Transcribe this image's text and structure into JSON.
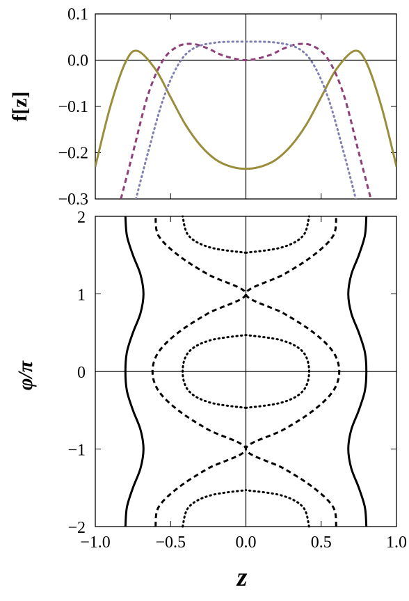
{
  "chart_data": [
    {
      "type": "line",
      "panel": "top",
      "ylabel": "f[z]",
      "xlim": [
        -1.0,
        1.0
      ],
      "ylim": [
        -0.3,
        0.1
      ],
      "xticks": [
        -1.0,
        -0.5,
        0.0,
        0.5,
        1.0
      ],
      "yticks": [
        0.1,
        0.0,
        -0.1,
        -0.2,
        -0.3
      ],
      "ytick_labels": [
        "0.1",
        "0.0",
        "−0.1",
        "−0.2",
        "−0.3"
      ],
      "grid": false,
      "series": [
        {
          "style": "solid",
          "color": "#9a8e3c",
          "x": [
            -1.0,
            -0.9,
            -0.8,
            -0.72,
            -0.6,
            -0.5,
            -0.4,
            -0.3,
            -0.2,
            -0.1,
            0.0,
            0.1,
            0.2,
            0.3,
            0.4,
            0.5,
            0.6,
            0.72,
            0.8,
            0.9,
            1.0
          ],
          "y": [
            -0.23,
            -0.1,
            -0.005,
            0.02,
            -0.02,
            -0.08,
            -0.14,
            -0.185,
            -0.215,
            -0.23,
            -0.235,
            -0.23,
            -0.215,
            -0.185,
            -0.14,
            -0.08,
            -0.02,
            0.02,
            -0.005,
            -0.1,
            -0.23
          ]
        },
        {
          "style": "dashed",
          "color": "#8e3f78",
          "x": [
            -0.83,
            -0.75,
            -0.65,
            -0.55,
            -0.45,
            -0.35,
            -0.25,
            -0.15,
            0.0,
            0.15,
            0.25,
            0.35,
            0.45,
            0.55,
            0.65,
            0.75,
            0.83
          ],
          "y": [
            -0.3,
            -0.2,
            -0.075,
            0.0,
            0.03,
            0.035,
            0.025,
            0.01,
            0.0,
            0.01,
            0.025,
            0.035,
            0.03,
            0.0,
            -0.075,
            -0.2,
            -0.3
          ]
        },
        {
          "style": "dotted",
          "color": "#7f7fb2",
          "x": [
            -0.73,
            -0.65,
            -0.55,
            -0.45,
            -0.35,
            -0.2,
            0.0,
            0.2,
            0.35,
            0.45,
            0.55,
            0.65,
            0.73
          ],
          "y": [
            -0.3,
            -0.2,
            -0.085,
            -0.01,
            0.025,
            0.038,
            0.04,
            0.038,
            0.025,
            -0.01,
            -0.085,
            -0.2,
            -0.3
          ]
        }
      ]
    },
    {
      "type": "line",
      "panel": "bottom",
      "xlabel": "z",
      "ylabel": "φ/π",
      "xlim": [
        -1.0,
        1.0
      ],
      "ylim": [
        -2,
        2
      ],
      "xticks": [
        -1.0,
        -0.5,
        0.0,
        0.5,
        1.0
      ],
      "xtick_labels": [
        "−1.0",
        "−0.5",
        "0.0",
        "0.5",
        "1.0"
      ],
      "yticks": [
        2,
        1,
        0,
        -1,
        -2
      ],
      "ytick_labels": [
        "2",
        "1",
        "0",
        "−1",
        "−2"
      ],
      "grid": false,
      "series": [
        {
          "style": "solid",
          "color": "#000000",
          "description_free": true,
          "y": [
            -2,
            -1.75,
            -1.5,
            -1.25,
            -1,
            -0.75,
            -0.5,
            -0.25,
            0,
            0.25,
            0.5,
            0.75,
            1,
            1.25,
            1.5,
            1.75,
            2
          ],
          "x_right": [
            0.8,
            0.79,
            0.75,
            0.7,
            0.68,
            0.7,
            0.75,
            0.79,
            0.8,
            0.79,
            0.75,
            0.7,
            0.68,
            0.7,
            0.75,
            0.79,
            0.8
          ]
        },
        {
          "style": "dashed",
          "color": "#000000",
          "y": [
            -2,
            -1.75,
            -1.5,
            -1.25,
            -1,
            -0.75,
            -0.5,
            -0.25,
            0,
            0.25,
            0.5,
            0.75,
            1,
            1.25,
            1.5,
            1.75,
            2
          ],
          "x_right": [
            0.6,
            0.58,
            0.45,
            0.25,
            0.0,
            0.25,
            0.45,
            0.58,
            0.62,
            0.58,
            0.45,
            0.25,
            0.0,
            0.25,
            0.45,
            0.58,
            0.6
          ]
        },
        {
          "style": "dotted",
          "color": "#000000",
          "closed_loops": [
            {
              "y": [
                -0.47,
                -0.4,
                -0.25,
                0,
                0.25,
                0.4,
                0.47
              ],
              "x_right": [
                0.0,
                0.24,
                0.38,
                0.42,
                0.38,
                0.24,
                0.0
              ]
            },
            {
              "y": [
                1.53,
                1.6,
                1.75,
                2.0
              ],
              "x_right": [
                0.0,
                0.24,
                0.38,
                0.42
              ]
            },
            {
              "y": [
                -2.0,
                -1.75,
                -1.6,
                -1.53
              ],
              "x_right": [
                0.42,
                0.38,
                0.24,
                0.0
              ]
            }
          ]
        }
      ]
    }
  ]
}
